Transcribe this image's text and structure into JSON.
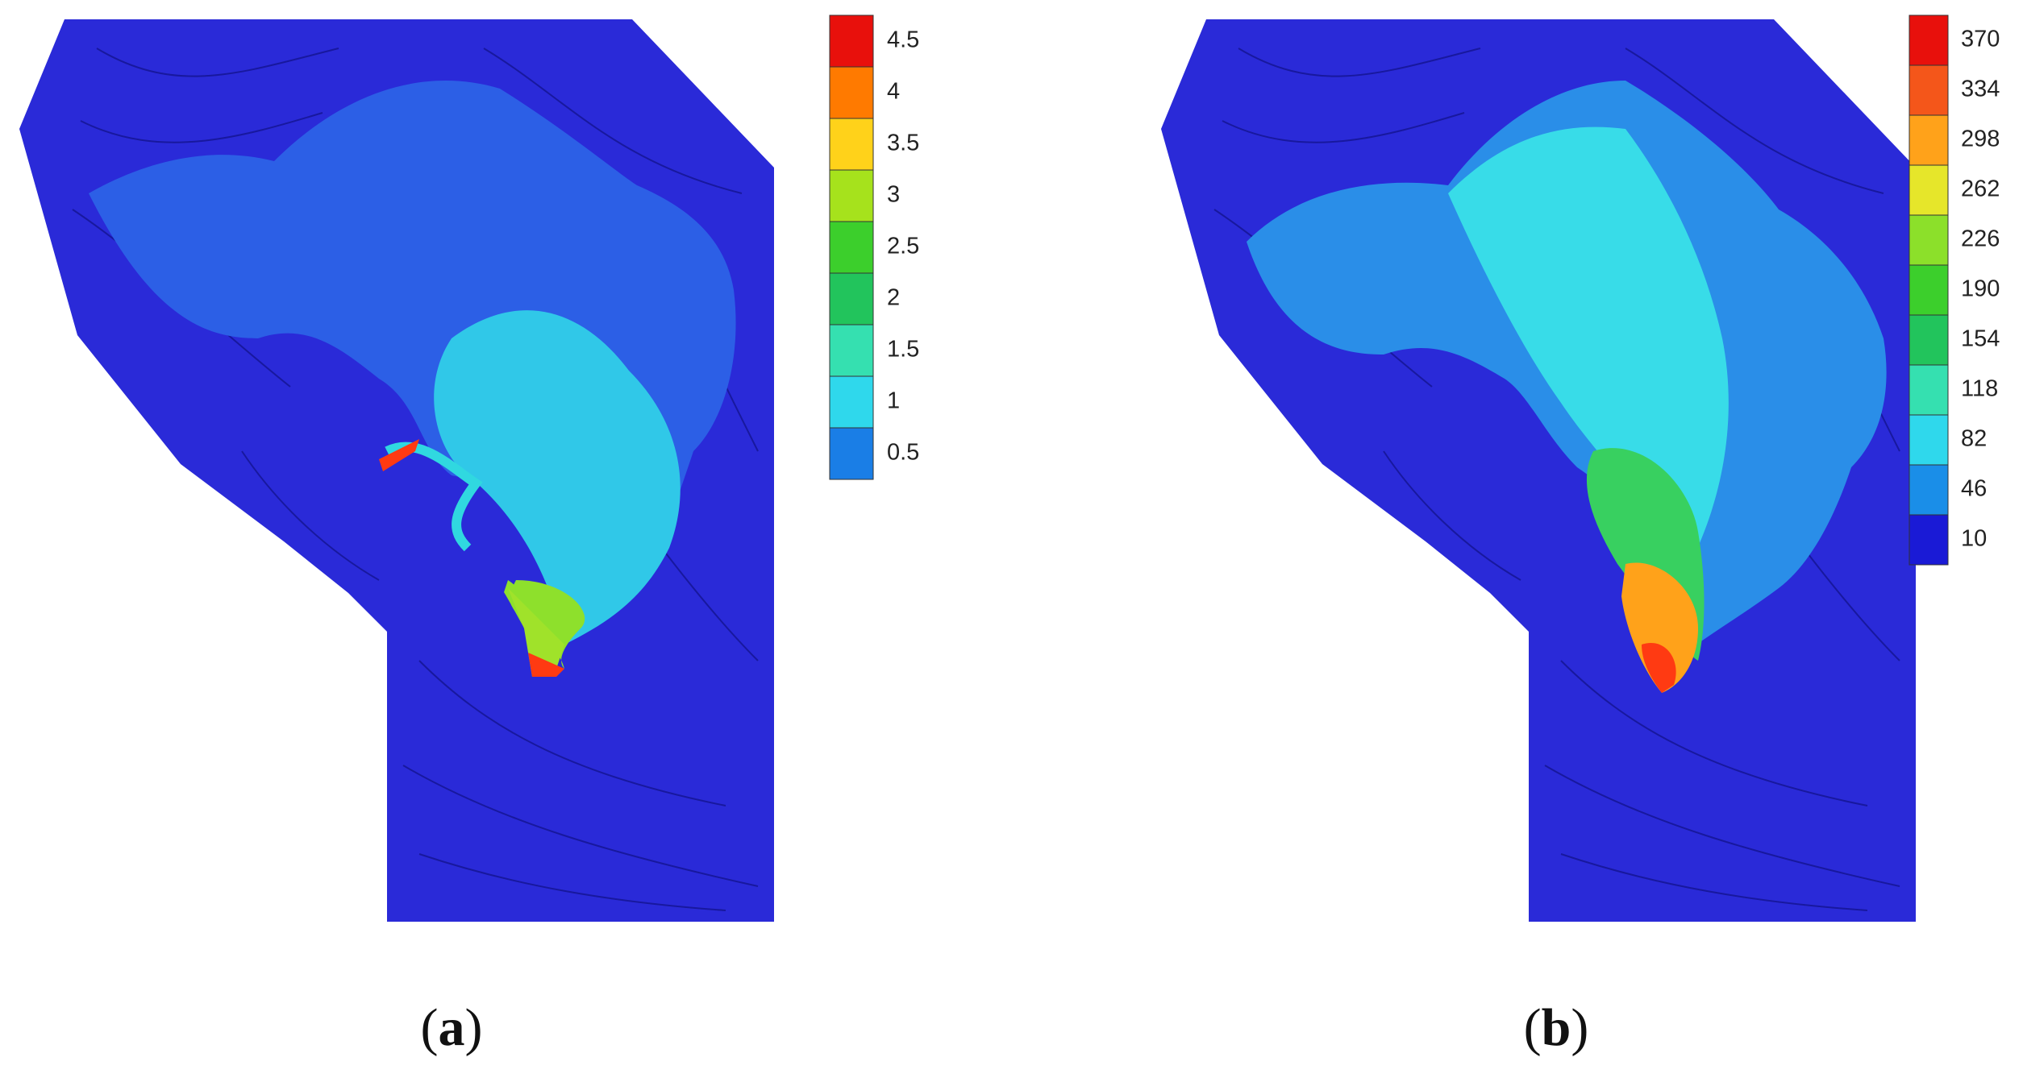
{
  "panels": [
    {
      "label": {
        "open": "(",
        "letter": "a",
        "close": ")"
      },
      "legend": {
        "values": [
          4.5,
          4,
          3.5,
          3,
          2.5,
          2,
          1.5,
          1,
          0.5
        ],
        "colors": [
          "#e8100c",
          "#ff7a00",
          "#ffd21a",
          "#a6e21c",
          "#3ccf2c",
          "#22c45c",
          "#35e0b0",
          "#2fd8ec",
          "#1a7ee6",
          "#1a1ad6"
        ]
      }
    },
    {
      "label": {
        "open": "(",
        "letter": "b",
        "close": ")"
      },
      "legend": {
        "values": [
          370,
          334,
          298,
          262,
          226,
          190,
          154,
          118,
          82,
          46,
          10
        ],
        "colors": [
          "#e8100c",
          "#f4561a",
          "#ffa21a",
          "#e6e62a",
          "#8ce02a",
          "#3ccf2c",
          "#22c45c",
          "#35e0b0",
          "#2fd8ec",
          "#1a8ee8",
          "#1a1ad6"
        ]
      }
    }
  ]
}
